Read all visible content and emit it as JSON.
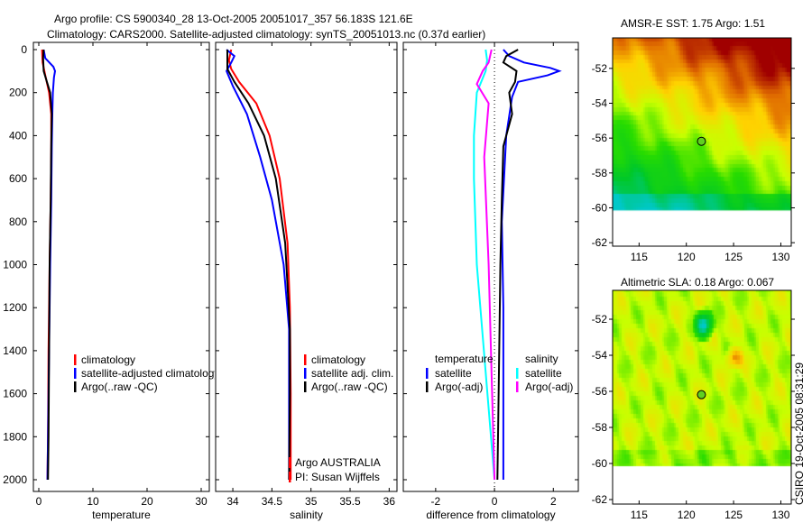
{
  "title": {
    "line1": "Argo profile: CS 5900340_28 13-Oct-2005 20051017_357 56.183S 121.6E",
    "line2": "Climatology: CARS2000. Satellite-adjusted climatology: synTS_20051013.nc (0.37d earlier)"
  },
  "credit": "CSIRO 19-Oct-2005 08:31:29",
  "chart_data": [
    {
      "type": "line",
      "id": "temperature",
      "xlabel": "temperature",
      "ylabel": "",
      "xlim": [
        -1,
        31.5
      ],
      "ylim": [
        2080,
        0
      ],
      "xticks": [
        0,
        10,
        20,
        30
      ],
      "yticks": [
        0,
        200,
        400,
        600,
        800,
        1000,
        1200,
        1400,
        1600,
        1800,
        2000
      ],
      "legend": [
        "climatology",
        "satellite-adjusted climatology",
        "Argo(..raw -QC)"
      ],
      "series": [
        {
          "name": "climatology",
          "color": "#ff0000",
          "depth": [
            0,
            60,
            120,
            200,
            300,
            450,
            700,
            1000,
            1400,
            1800,
            2000
          ],
          "values": [
            0.6,
            0.7,
            1.2,
            1.9,
            2.3,
            2.3,
            2.2,
            2.0,
            1.8,
            1.7,
            1.6
          ]
        },
        {
          "name": "satellite-adjusted climatology",
          "color": "#0000ff",
          "depth": [
            0,
            40,
            80,
            100,
            130,
            200,
            300,
            450,
            700,
            1000,
            1400,
            1800,
            2000
          ],
          "values": [
            0.9,
            1.2,
            2.7,
            3.0,
            2.8,
            2.6,
            2.5,
            2.4,
            2.3,
            2.1,
            1.9,
            1.7,
            1.6
          ]
        },
        {
          "name": "Argo(..raw -QC)",
          "color": "#000000",
          "depth": [
            0,
            40,
            100,
            150,
            200,
            300,
            450,
            700,
            1000,
            1400,
            1800,
            2000
          ],
          "values": [
            0.9,
            0.8,
            0.9,
            1.5,
            2.1,
            2.4,
            2.3,
            2.2,
            2.0,
            1.9,
            1.8,
            1.7
          ]
        }
      ]
    },
    {
      "type": "line",
      "id": "salinity",
      "xlabel": "salinity",
      "xlim": [
        33.78,
        36.1
      ],
      "ylim": [
        2080,
        0
      ],
      "xticks": [
        34,
        34.5,
        35,
        35.5,
        36
      ],
      "legend": [
        "climatology",
        "satellite adj. clim.",
        "Argo(..raw -QC)"
      ],
      "notes": [
        "Argo AUSTRALIA",
        "PI: Susan Wijffels"
      ],
      "series": [
        {
          "name": "climatology",
          "color": "#ff0000",
          "depth": [
            0,
            50,
            90,
            150,
            250,
            400,
            600,
            900,
            1200,
            1600,
            2000
          ],
          "values": [
            33.98,
            33.95,
            33.98,
            34.08,
            34.3,
            34.47,
            34.6,
            34.7,
            34.73,
            34.74,
            34.74
          ]
        },
        {
          "name": "satellite adj. clim.",
          "color": "#0000ff",
          "depth": [
            0,
            30,
            60,
            100,
            170,
            300,
            500,
            700,
            1000,
            1300,
            1700,
            2000
          ],
          "values": [
            33.92,
            34.02,
            33.98,
            33.92,
            34.0,
            34.18,
            34.35,
            34.5,
            34.65,
            34.72,
            34.72,
            34.72
          ]
        },
        {
          "name": "Argo(..raw -QC)",
          "color": "#000000",
          "depth": [
            0,
            90,
            150,
            250,
            400,
            600,
            900,
            1300,
            1600,
            2000
          ],
          "values": [
            33.93,
            33.93,
            34.02,
            34.2,
            34.4,
            34.55,
            34.67,
            34.73,
            34.73,
            34.72
          ]
        }
      ]
    },
    {
      "type": "line",
      "id": "difference",
      "xlabel": "difference from climatology",
      "xlim": [
        -3.1,
        2.85
      ],
      "ylim": [
        2080,
        0
      ],
      "xticks": [
        -2,
        0,
        2
      ],
      "legend_groups": [
        {
          "heading": "temperature",
          "items": [
            "satellite",
            "Argo(-adj)"
          ]
        },
        {
          "heading": "salinity",
          "items": [
            "satellite",
            "Argo(-adj)"
          ]
        }
      ],
      "series": [
        {
          "name": "temperature satellite",
          "color": "#0000ff",
          "depth": [
            0,
            30,
            60,
            85,
            100,
            120,
            150,
            220,
            400,
            800,
            1200,
            2000
          ],
          "values": [
            0.3,
            0.5,
            1.0,
            1.9,
            2.2,
            1.8,
            0.8,
            0.6,
            0.4,
            0.25,
            0.3,
            0.3
          ]
        },
        {
          "name": "temperature Argo(-adj)",
          "color": "#000000",
          "depth": [
            0,
            30,
            60,
            100,
            150,
            200,
            300,
            450,
            700,
            1000,
            1500,
            2000
          ],
          "values": [
            0.8,
            0.4,
            0.3,
            0.75,
            0.7,
            0.5,
            0.6,
            0.3,
            0.25,
            0.2,
            0.15,
            0.1
          ]
        },
        {
          "name": "salinity satellite",
          "color": "#00ffff",
          "depth": [
            0,
            50,
            100,
            200,
            400,
            600,
            1000,
            1500,
            2000
          ],
          "values": [
            -0.3,
            -0.25,
            -0.3,
            -0.6,
            -0.7,
            -0.7,
            -0.6,
            -0.3,
            0.0
          ]
        },
        {
          "name": "salinity Argo(-adj)",
          "color": "#ff00ff",
          "depth": [
            0,
            60,
            100,
            160,
            250,
            500,
            1000,
            1500,
            2000
          ],
          "values": [
            -0.1,
            -0.2,
            -0.4,
            -0.6,
            -0.2,
            -0.35,
            -0.2,
            -0.1,
            0.0
          ]
        }
      ]
    }
  ],
  "maps": [
    {
      "title": "AMSR-E SST: 1.75 Argo: 1.51",
      "xticks": [
        115,
        120,
        125,
        130
      ],
      "yticks": [
        -52,
        -54,
        -56,
        -58,
        -60,
        -62
      ],
      "float_lon": 121.6,
      "float_lat": -56.183
    },
    {
      "title": "Altimetric SLA: 0.18 Argo: 0.067",
      "xticks": [
        115,
        120,
        125,
        130
      ],
      "yticks": [
        -52,
        -54,
        -56,
        -58,
        -60,
        -62
      ],
      "float_lon": 121.6,
      "float_lat": -56.183
    }
  ]
}
